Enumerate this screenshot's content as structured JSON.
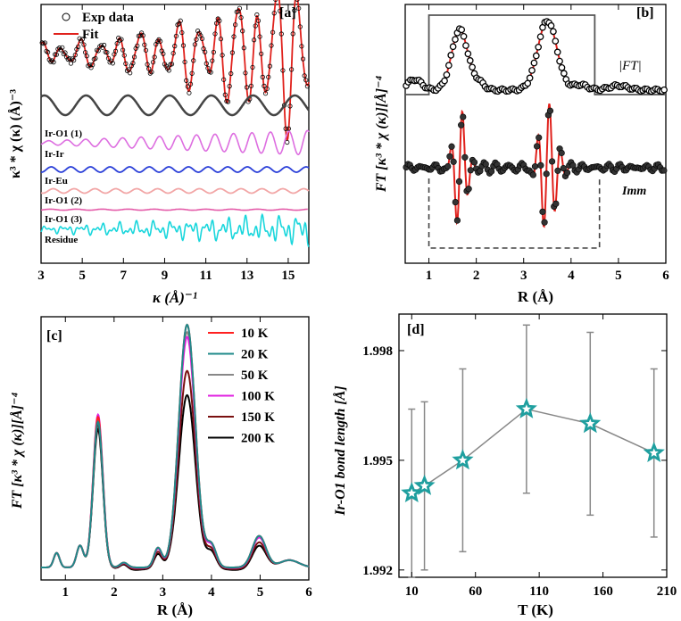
{
  "panels": {
    "a": {
      "label": "[a]",
      "ylabel": "κ³ * χ (κ) (Å)⁻³",
      "xlabel": "κ (Å)⁻¹",
      "xticks": [
        "3",
        "5",
        "7",
        "9",
        "11",
        "13",
        "15"
      ],
      "legend": [
        "Exp data",
        "Fit"
      ],
      "components": [
        "Ir-O1 (1)",
        "Ir-Ir",
        "Ir-Eu",
        "Ir-O1 (2)",
        "Ir-O1 (3)",
        "Residue"
      ]
    },
    "b": {
      "label": "[b]",
      "ylabel": "FT [κ³ * χ (κ)][Å]⁻⁴",
      "xlabel": "R (Å)",
      "xticks": [
        "1",
        "2",
        "3",
        "4",
        "5",
        "6"
      ],
      "annotations": [
        "|FT|",
        "Imm"
      ]
    },
    "c": {
      "label": "[c]",
      "ylabel": "FT [κ³ * χ (κ)][Å]⁻⁴",
      "xlabel": "R (Å)",
      "xticks": [
        "1",
        "2",
        "3",
        "4",
        "5",
        "6"
      ],
      "legend": [
        "10 K",
        "20 K",
        "50 K",
        "100 K",
        "150 K",
        "200 K"
      ]
    },
    "d": {
      "label": "[d]",
      "ylabel": "Ir-O1 bond length [Å]",
      "xlabel": "T (K)",
      "xticks": [
        "10",
        "60",
        "110",
        "160",
        "210"
      ],
      "yticks": [
        "1.992",
        "1.995",
        "1.998"
      ]
    }
  },
  "chart_data": [
    {
      "panel": "a",
      "type": "line",
      "xlabel": "κ (Å)⁻¹",
      "ylabel": "κ³ * χ (κ) (Å)⁻³",
      "xlim": [
        3,
        16
      ],
      "series": [
        {
          "name": "Exp data",
          "style": "open-circles",
          "color": "#000000"
        },
        {
          "name": "Fit",
          "color": "#e0211c"
        },
        {
          "name": "",
          "color": "#444444"
        },
        {
          "name": "Ir-O1 (1)",
          "color": "#dd6ee0"
        },
        {
          "name": "Ir-Ir",
          "color": "#dd6ee0"
        },
        {
          "name": "Ir-Eu",
          "color": "#2a3fd8"
        },
        {
          "name": "Ir-O1 (2)",
          "color": "#f2a6a6"
        },
        {
          "name": "Ir-O1 (3)",
          "color": "#e45aa8"
        },
        {
          "name": "Residue",
          "color": "#19d6dc"
        }
      ]
    },
    {
      "panel": "b",
      "type": "line",
      "xlabel": "R (Å)",
      "ylabel": "FT [κ³ * χ (κ)][Å]⁻⁴",
      "xlim": [
        0.5,
        6
      ],
      "window_magnitude": [
        1.0,
        4.5
      ],
      "window_imaginary": [
        1.0,
        4.6
      ],
      "peaks_magnitude": [
        {
          "R": 1.65
        },
        {
          "R": 3.5
        }
      ]
    },
    {
      "panel": "c",
      "type": "line",
      "xlabel": "R (Å)",
      "ylabel": "FT [κ³ * χ (κ)][Å]⁻⁴",
      "xlim": [
        0.5,
        6
      ],
      "peak_positions": [
        1.65,
        3.5
      ],
      "series": [
        {
          "name": "10 K",
          "color": "#ff2020",
          "peak1": 0.62,
          "peak2": 1.0
        },
        {
          "name": "20 K",
          "color": "#1f8a8a",
          "peak1": 0.6,
          "peak2": 1.0
        },
        {
          "name": "50 K",
          "color": "#888888",
          "peak1": 0.61,
          "peak2": 0.97
        },
        {
          "name": "100 K",
          "color": "#e020e0",
          "peak1": 0.63,
          "peak2": 0.95
        },
        {
          "name": "150 K",
          "color": "#7a1010",
          "peak1": 0.59,
          "peak2": 0.81
        },
        {
          "name": "200 K",
          "color": "#000000",
          "peak1": 0.57,
          "peak2": 0.71
        }
      ]
    },
    {
      "panel": "d",
      "type": "scatter",
      "xlabel": "T (K)",
      "ylabel": "Ir-O1 bond length [Å]",
      "xlim": [
        0,
        210
      ],
      "ylim": [
        1.9918,
        1.999
      ],
      "x": [
        10,
        20,
        50,
        100,
        150,
        200
      ],
      "y": [
        1.9941,
        1.9943,
        1.995,
        1.9964,
        1.996,
        1.9952
      ],
      "yerr": [
        2.3,
        2.3,
        2.5,
        2.3,
        2.5,
        2.3
      ],
      "yerr_scale": 0.001,
      "marker_color": "#1f9f9f",
      "line_color": "#888888"
    }
  ]
}
